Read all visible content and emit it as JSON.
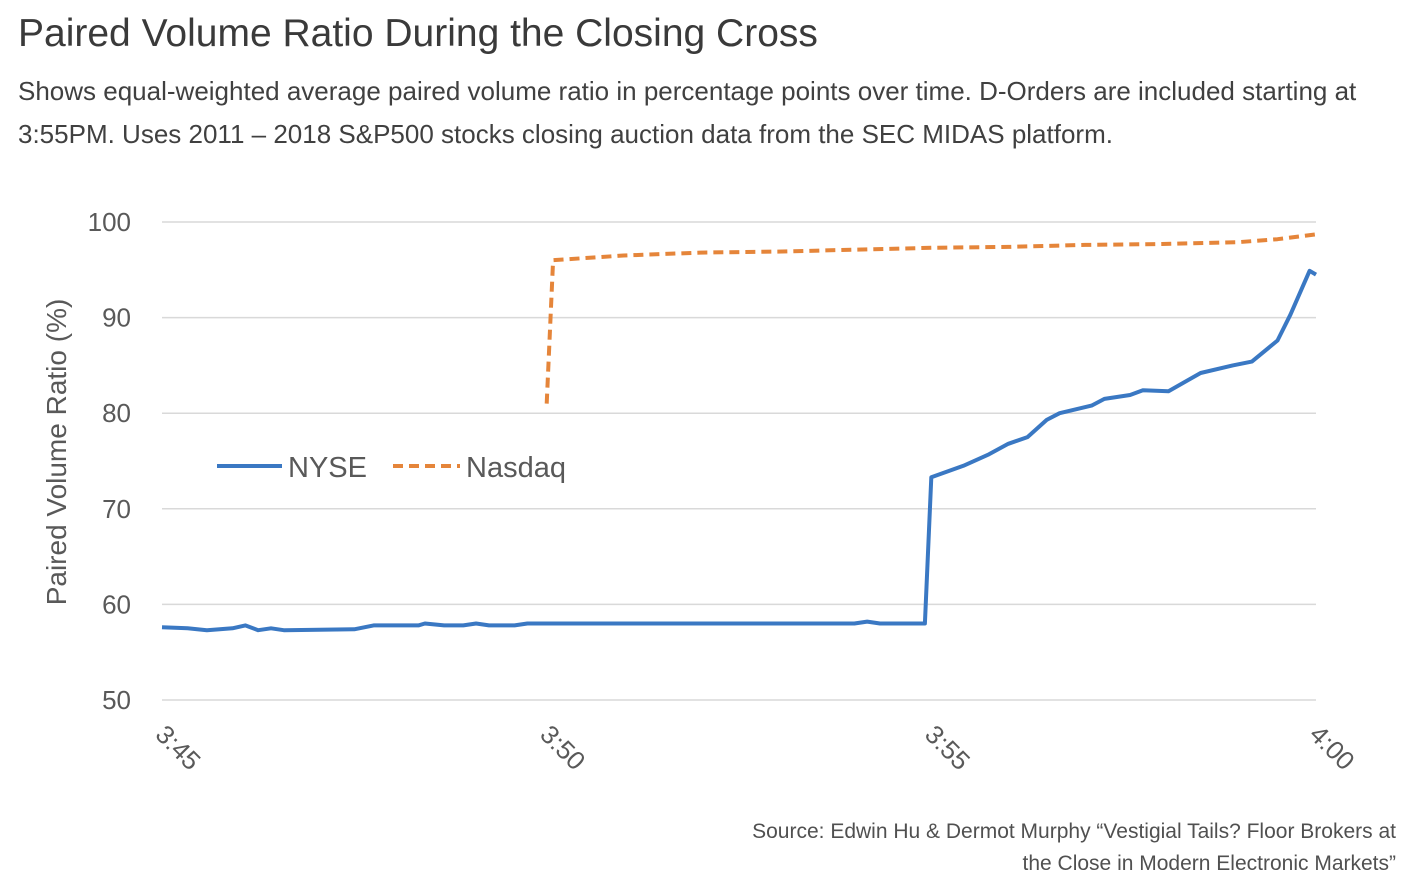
{
  "chart_data": {
    "type": "line",
    "title": "Paired Volume Ratio During the Closing Cross",
    "subtitle": "Shows equal-weighted average paired volume ratio in percentage points over time. D-Orders are included starting at 3:55PM. Uses 2011 – 2018 S&P500 stocks closing auction data from the SEC MIDAS platform.",
    "xlabel": "",
    "ylabel": "Paired Volume Ratio (%)",
    "xlim": [
      "3:45:00",
      "4:00:00"
    ],
    "ylim": [
      50,
      100
    ],
    "x_ticks": [
      "3:45",
      "3:50",
      "3:55",
      "4:00"
    ],
    "y_ticks": [
      50,
      60,
      70,
      80,
      90,
      100
    ],
    "grid": "horizontal",
    "legend_position": "center-left",
    "series": [
      {
        "name": "NYSE",
        "color": "#3a78c3",
        "style": "solid",
        "points": [
          [
            "3:45:00",
            57.6
          ],
          [
            "3:45:20",
            57.5
          ],
          [
            "3:45:35",
            57.3
          ],
          [
            "3:45:55",
            57.5
          ],
          [
            "3:46:05",
            57.8
          ],
          [
            "3:46:15",
            57.3
          ],
          [
            "3:46:25",
            57.5
          ],
          [
            "3:46:35",
            57.3
          ],
          [
            "3:47:30",
            57.4
          ],
          [
            "3:47:45",
            57.8
          ],
          [
            "3:48:20",
            57.8
          ],
          [
            "3:48:25",
            58.0
          ],
          [
            "3:48:40",
            57.8
          ],
          [
            "3:48:55",
            57.8
          ],
          [
            "3:49:05",
            58.0
          ],
          [
            "3:49:15",
            57.8
          ],
          [
            "3:49:35",
            57.8
          ],
          [
            "3:49:45",
            58.0
          ],
          [
            "3:54:00",
            58.0
          ],
          [
            "3:54:10",
            58.2
          ],
          [
            "3:54:20",
            58.0
          ],
          [
            "3:54:55",
            58.0
          ],
          [
            "3:55:00",
            73.3
          ],
          [
            "3:55:25",
            74.5
          ],
          [
            "3:55:45",
            75.7
          ],
          [
            "3:56:00",
            76.8
          ],
          [
            "3:56:15",
            77.5
          ],
          [
            "3:56:30",
            79.3
          ],
          [
            "3:56:40",
            80.0
          ],
          [
            "3:57:05",
            80.8
          ],
          [
            "3:57:15",
            81.5
          ],
          [
            "3:57:35",
            81.9
          ],
          [
            "3:57:45",
            82.4
          ],
          [
            "3:58:05",
            82.3
          ],
          [
            "3:58:30",
            84.2
          ],
          [
            "3:58:55",
            85.0
          ],
          [
            "3:59:10",
            85.4
          ],
          [
            "3:59:30",
            87.6
          ],
          [
            "3:59:40",
            90.3
          ],
          [
            "3:59:55",
            94.9
          ],
          [
            "4:00:00",
            94.5
          ]
        ]
      },
      {
        "name": "Nasdaq",
        "color": "#e5853a",
        "style": "dashed",
        "points": [
          [
            "3:50:00",
            81.0
          ],
          [
            "3:50:05",
            96.0
          ],
          [
            "3:51:00",
            96.5
          ],
          [
            "3:52:00",
            96.8
          ],
          [
            "3:53:00",
            96.9
          ],
          [
            "3:54:00",
            97.1
          ],
          [
            "3:55:00",
            97.3
          ],
          [
            "3:56:00",
            97.4
          ],
          [
            "3:57:00",
            97.6
          ],
          [
            "3:58:00",
            97.7
          ],
          [
            "3:59:00",
            97.9
          ],
          [
            "3:59:30",
            98.2
          ],
          [
            "4:00:00",
            98.7
          ]
        ]
      }
    ],
    "source_lines": [
      "Source: Edwin Hu & Dermot Murphy “Vestigial Tails? Floor Brokers at",
      "the Close in Modern Electronic Markets”"
    ]
  }
}
